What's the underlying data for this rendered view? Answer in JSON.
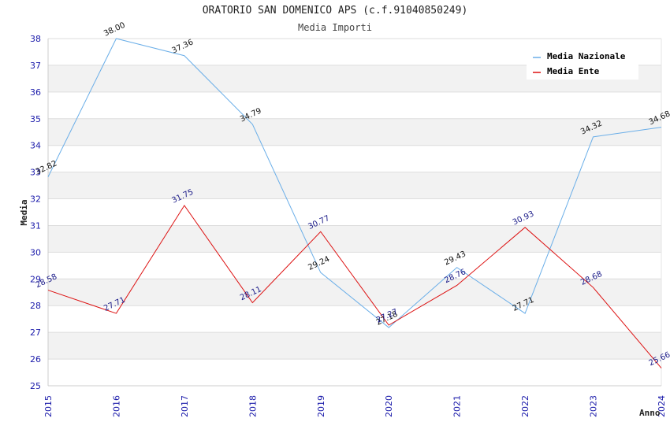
{
  "title": "ORATORIO SAN DOMENICO APS (c.f.91040850249)",
  "subtitle": "Media Importi",
  "chart_data": {
    "type": "line",
    "x": [
      "2015",
      "2016",
      "2017",
      "2018",
      "2019",
      "2020",
      "2021",
      "2022",
      "2023",
      "2024"
    ],
    "xlabel": "Anno",
    "ylabel": "Media",
    "ylim": [
      25,
      38
    ],
    "yticks": [
      "25",
      "26",
      "27",
      "28",
      "29",
      "30",
      "31",
      "32",
      "33",
      "34",
      "35",
      "36",
      "37",
      "38"
    ],
    "grid": true,
    "legend": "top-right",
    "series": [
      {
        "name": "Media Nazionale",
        "color": "#6aaee8",
        "values": [
          32.82,
          38.0,
          37.36,
          34.79,
          29.24,
          27.18,
          29.43,
          27.71,
          34.32,
          34.68
        ],
        "labels": [
          "32.82",
          "38.00",
          "37.36",
          "34.79",
          "29.24",
          "27.18",
          "29.43",
          "27.71",
          "34.32",
          "34.68"
        ]
      },
      {
        "name": "Media Ente",
        "color": "#dd1111",
        "values": [
          28.58,
          27.71,
          31.75,
          28.11,
          30.77,
          27.27,
          28.76,
          30.93,
          28.68,
          25.66
        ],
        "labels": [
          "28.58",
          "27.71",
          "31.75",
          "28.11",
          "30.77",
          "27.27",
          "28.76",
          "30.93",
          "28.68",
          "25.66"
        ]
      }
    ]
  }
}
